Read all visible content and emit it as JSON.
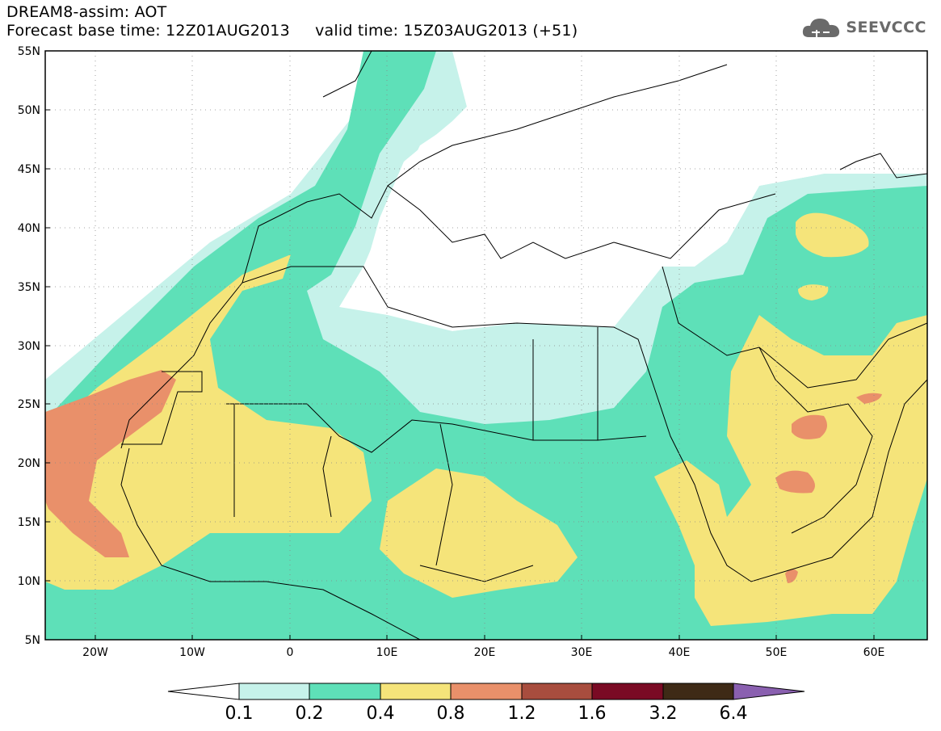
{
  "header": {
    "title_line1": "DREAM8-assim: AOT",
    "base_time": "Forecast base time: 12Z01AUG2013",
    "valid_time": "valid time: 15Z03AUG2013 (+51)"
  },
  "logo": {
    "text": "SEEVCCC",
    "icon": "cloud-icon"
  },
  "map": {
    "lon_range": [
      -25,
      65
    ],
    "lat_range": [
      5,
      55
    ],
    "lat_ticks": [
      "55N",
      "50N",
      "45N",
      "40N",
      "35N",
      "30N",
      "25N",
      "20N",
      "15N",
      "10N",
      "5N"
    ],
    "lon_ticks": [
      "20W",
      "10W",
      "0",
      "10E",
      "20E",
      "30E",
      "40E",
      "50E",
      "60E"
    ],
    "grid": "dotted"
  },
  "colorbar": {
    "levels": [
      "0.1",
      "0.2",
      "0.4",
      "0.8",
      "1.2",
      "1.6",
      "3.2",
      "6.4"
    ],
    "colors": [
      "#ffffff",
      "#c6f2ea",
      "#5ee0b8",
      "#f5e47a",
      "#e9906a",
      "#a84d3e",
      "#7a0a24",
      "#3e2a16",
      "#8a60b0"
    ]
  }
}
